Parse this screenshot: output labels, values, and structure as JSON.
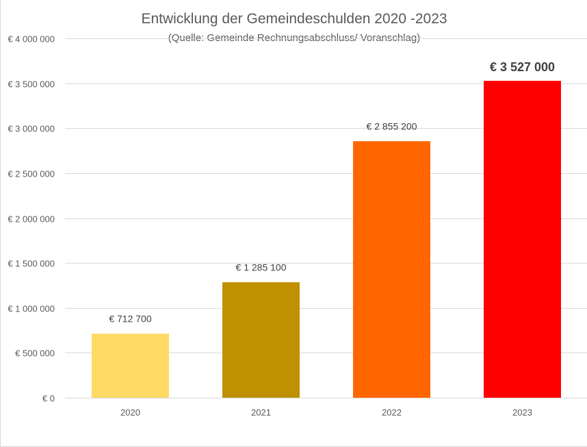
{
  "chart_data": {
    "type": "bar",
    "title": "Entwicklung der Gemeindeschulden 2020 -2023",
    "subtitle": "(Quelle: Gemeinde Rechnungsabschluss/ Voranschlag)",
    "xlabel": "",
    "ylabel": "",
    "categories": [
      "2020",
      "2021",
      "2022",
      "2023"
    ],
    "values": [
      712700,
      1285100,
      2855200,
      3527000
    ],
    "data_labels": [
      "€ 712 700",
      "€ 1 285 100",
      "€ 2 855 200",
      "€ 3 527 000"
    ],
    "bar_colors": [
      "#FFD966",
      "#BF9000",
      "#FF6600",
      "#FF0000"
    ],
    "emphasized_index": 3,
    "ylim": [
      0,
      4000000
    ],
    "y_ticks": [
      0,
      500000,
      1000000,
      1500000,
      2000000,
      2500000,
      3000000,
      3500000,
      4000000
    ],
    "y_tick_labels": [
      "€ 0",
      "€ 500 000",
      "€ 1 000 000",
      "€ 1 500 000",
      "€ 2 000 000",
      "€ 2 500 000",
      "€ 3 000 000",
      "€ 3 500 000",
      "€ 4 000 000"
    ],
    "grid": true,
    "legend": "none",
    "gridline_color": "#d9d9d9"
  }
}
